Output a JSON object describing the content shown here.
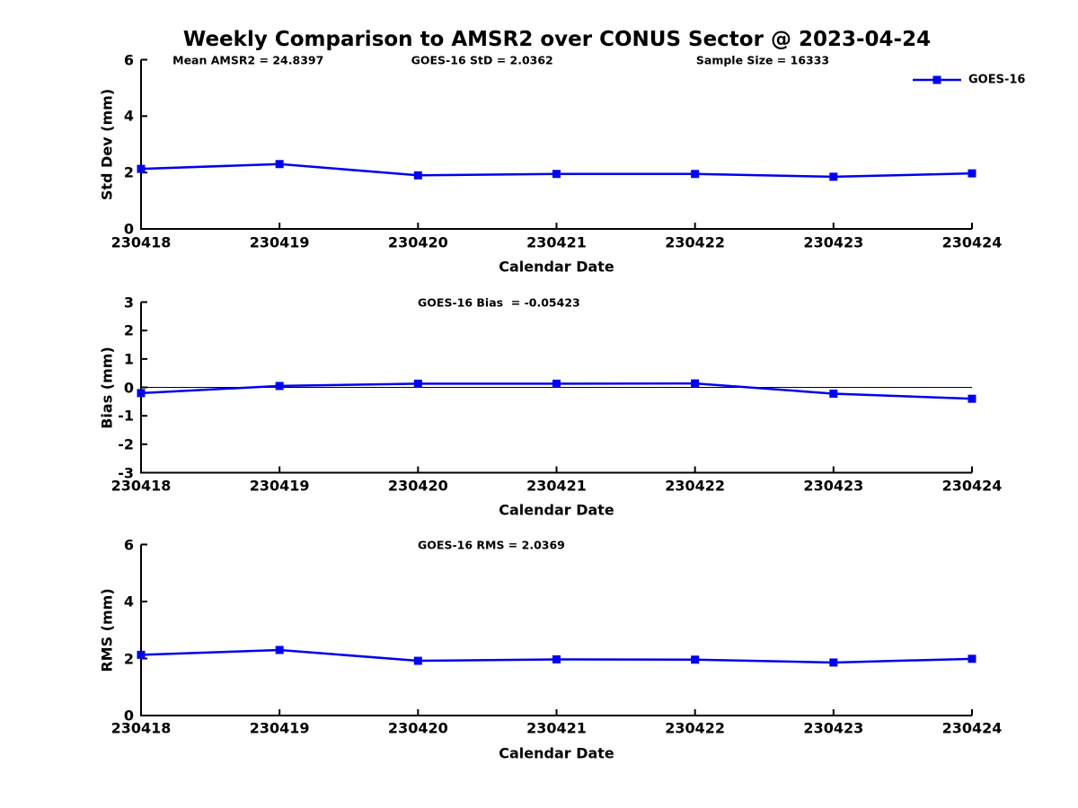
{
  "page": {
    "title": "Weekly Comparison to AMSR2 over CONUS Sector @ 2023-04-24",
    "background": "#ffffff",
    "text_color": "#000000",
    "axis_color": "#000000"
  },
  "legend": {
    "label": "GOES-16",
    "color": "#0000ee",
    "position": "top-right"
  },
  "stats": {
    "mean_amsr2": 24.8397,
    "goes16_std": 2.0362,
    "sample_size": 16333,
    "goes16_bias": -0.05423,
    "goes16_rms": 2.0369
  },
  "chart_data": [
    {
      "type": "line",
      "panel": "std-dev",
      "annotations": [
        "Mean AMSR2 = 24.8397",
        "GOES-16 StD = 2.0362",
        "Sample Size = 16333"
      ],
      "x_categories": [
        "230418",
        "230419",
        "230420",
        "230421",
        "230422",
        "230423",
        "230424"
      ],
      "xlabel": "Calendar Date",
      "ylabel": "Std Dev (mm)",
      "ylim": [
        0,
        6
      ],
      "yticks": [
        0,
        2,
        4,
        6
      ],
      "grid": false,
      "zero_line": false,
      "legend_visible": true,
      "series": [
        {
          "name": "GOES-16",
          "color": "#0000ee",
          "marker": "square",
          "values": [
            2.13,
            2.3,
            1.9,
            1.95,
            1.95,
            1.85,
            1.97
          ]
        }
      ]
    },
    {
      "type": "line",
      "panel": "bias",
      "annotations": [
        "GOES-16 Bias  = -0.05423"
      ],
      "x_categories": [
        "230418",
        "230419",
        "230420",
        "230421",
        "230422",
        "230423",
        "230424"
      ],
      "xlabel": "Calendar Date",
      "ylabel": "Bias (mm)",
      "ylim": [
        -3,
        3
      ],
      "yticks": [
        -3,
        -2,
        -1,
        0,
        1,
        2,
        3
      ],
      "grid": false,
      "zero_line": true,
      "legend_visible": false,
      "series": [
        {
          "name": "GOES-16",
          "color": "#0000ee",
          "marker": "square",
          "values": [
            -0.2,
            0.05,
            0.13,
            0.13,
            0.14,
            -0.22,
            -0.4
          ]
        }
      ]
    },
    {
      "type": "line",
      "panel": "rms",
      "annotations": [
        "GOES-16 RMS = 2.0369"
      ],
      "x_categories": [
        "230418",
        "230419",
        "230420",
        "230421",
        "230422",
        "230423",
        "230424"
      ],
      "xlabel": "Calendar Date",
      "ylabel": "RMS (mm)",
      "ylim": [
        0,
        6
      ],
      "yticks": [
        0,
        2,
        4,
        6
      ],
      "grid": false,
      "zero_line": false,
      "legend_visible": false,
      "series": [
        {
          "name": "GOES-16",
          "color": "#0000ee",
          "marker": "square",
          "values": [
            2.13,
            2.3,
            1.92,
            1.97,
            1.96,
            1.86,
            1.99
          ]
        }
      ]
    }
  ]
}
